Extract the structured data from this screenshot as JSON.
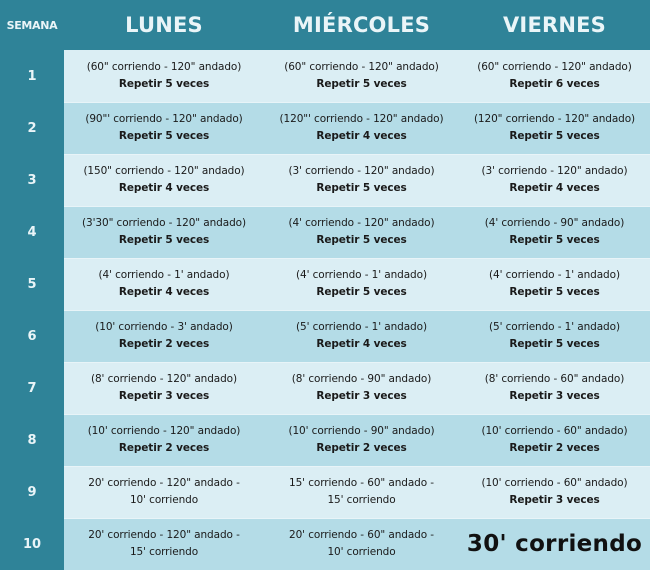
{
  "header": {
    "week_label": "SEMANA",
    "days": [
      "LUNES",
      "MIÉRCOLES",
      "VIERNES"
    ]
  },
  "colors": {
    "header_bg": "#2f8398",
    "header_text": "#eaf5f8",
    "row_light": "#dbeef4",
    "row_dark": "#b4dce7",
    "cell_text": "#1a1a1a"
  },
  "weeks": [
    {
      "week": "1",
      "lunes": {
        "line1": "(60\" corriendo - 120\" andado)",
        "line2": "Repetir 5 veces"
      },
      "miercoles": {
        "line1": "(60\" corriendo - 120\" andado)",
        "line2": "Repetir 5 veces"
      },
      "viernes": {
        "line1": "(60\" corriendo - 120\" andado)",
        "line2": "Repetir 6 veces"
      }
    },
    {
      "week": "2",
      "lunes": {
        "line1": "(90\"' corriendo - 120\" andado)",
        "line2": "Repetir 5 veces"
      },
      "miercoles": {
        "line1": "(120\"' corriendo - 120\" andado)",
        "line2": "Repetir 4 veces"
      },
      "viernes": {
        "line1": "(120\" corriendo - 120\" andado)",
        "line2": "Repetir 5 veces"
      }
    },
    {
      "week": "3",
      "lunes": {
        "line1": "(150\" corriendo - 120\" andado)",
        "line2": "Repetir 4 veces"
      },
      "miercoles": {
        "line1": "(3' corriendo - 120\" andado)",
        "line2": "Repetir 5 veces"
      },
      "viernes": {
        "line1": "(3' corriendo - 120\" andado)",
        "line2": "Repetir 4 veces"
      }
    },
    {
      "week": "4",
      "lunes": {
        "line1": "(3'30\" corriendo - 120\" andado)",
        "line2": "Repetir 5 veces"
      },
      "miercoles": {
        "line1": "(4' corriendo - 120\" andado)",
        "line2": "Repetir 5 veces"
      },
      "viernes": {
        "line1": "(4' corriendo - 90\" andado)",
        "line2": "Repetir 5 veces"
      }
    },
    {
      "week": "5",
      "lunes": {
        "line1": "(4' corriendo - 1' andado)",
        "line2": "Repetir 4 veces"
      },
      "miercoles": {
        "line1": "(4' corriendo - 1' andado)",
        "line2": "Repetir 5 veces"
      },
      "viernes": {
        "line1": "(4' corriendo - 1' andado)",
        "line2": "Repetir 5 veces"
      }
    },
    {
      "week": "6",
      "lunes": {
        "line1": "(10' corriendo - 3' andado)",
        "line2": "Repetir 2 veces"
      },
      "miercoles": {
        "line1": "(5' corriendo - 1' andado)",
        "line2": "Repetir 4 veces"
      },
      "viernes": {
        "line1": "(5' corriendo - 1' andado)",
        "line2": "Repetir 5 veces"
      }
    },
    {
      "week": "7",
      "lunes": {
        "line1": "(8' corriendo - 120\" andado)",
        "line2": "Repetir 3 veces"
      },
      "miercoles": {
        "line1": "(8' corriendo - 90\" andado)",
        "line2": "Repetir 3 veces"
      },
      "viernes": {
        "line1": "(8' corriendo - 60\" andado)",
        "line2": "Repetir 3 veces"
      }
    },
    {
      "week": "8",
      "lunes": {
        "line1": "(10' corriendo - 120\" andado)",
        "line2": "Repetir 2 veces"
      },
      "miercoles": {
        "line1": "(10' corriendo - 90\" andado)",
        "line2": "Repetir 2 veces"
      },
      "viernes": {
        "line1": "(10' corriendo - 60\" andado)",
        "line2": "Repetir 2 veces"
      }
    },
    {
      "week": "9",
      "lunes": {
        "line1": "20' corriendo - 120\" andado -",
        "line2": "10' corriendo"
      },
      "miercoles": {
        "line1": "15' corriendo - 60\" andado -",
        "line2": "15' corriendo"
      },
      "viernes": {
        "line1": "(10' corriendo - 60\" andado)",
        "line2": "Repetir 3 veces"
      }
    },
    {
      "week": "10",
      "lunes": {
        "line1": "20' corriendo - 120\" andado -",
        "line2": "15' corriendo"
      },
      "miercoles": {
        "line1": "20' corriendo - 60\" andado -",
        "line2": "10' corriendo"
      },
      "viernes": {
        "big": "30' corriendo"
      }
    }
  ]
}
